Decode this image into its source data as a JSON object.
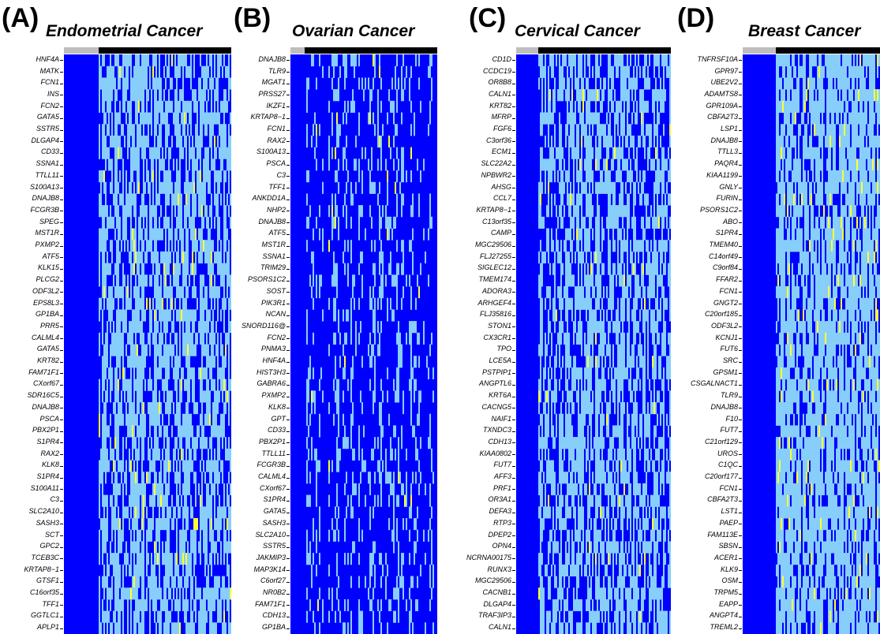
{
  "chart_data": [
    {
      "type": "heatmap",
      "letter": "(A)",
      "title": "Endometrial Cancer",
      "colors": {
        "dark": "#0000ff",
        "light": "#87cefa",
        "high": "#ffff33",
        "bar_normal": "#bebebe",
        "bar_tumor": "#000000"
      },
      "genes": [
        "HNF4A",
        "MATK",
        "FCN1",
        "INS",
        "FCN2",
        "GATA5",
        "SSTR5",
        "DLGAP4",
        "CD33",
        "SSNA1",
        "TTLL11",
        "S100A13",
        "DNAJB8",
        "FCGR3B",
        "SPEG",
        "MST1R",
        "PXMP2",
        "ATF5",
        "KLK15",
        "PLCG2",
        "ODF3L2",
        "EPS8L3",
        "GP1BA",
        "PRR5",
        "CALML4",
        "GATA5",
        "KRT82",
        "FAM71F1",
        "CXorf67",
        "SDR16C5",
        "DNAJB8",
        "PSCA",
        "PBX2P1",
        "S1PR4",
        "RAX2",
        "KLK8",
        "S1PR4",
        "S100A11",
        "C3",
        "SLC2A10",
        "SASH3",
        "SCT",
        "GPC2",
        "TCEB3C",
        "KRTAP8−1",
        "GTSF1",
        "C16orf35",
        "TFF1",
        "GGTLC1",
        "APLP1"
      ]
    },
    {
      "type": "heatmap",
      "letter": "(B)",
      "title": "Ovarian Cancer",
      "colors": {
        "dark": "#0000ff",
        "light": "#87cefa",
        "high": "#ffff33",
        "bar_normal": "#bebebe",
        "bar_tumor": "#000000"
      },
      "genes": [
        "DNAJB8",
        "TLR9",
        "MGAT1",
        "PRSS27",
        "IKZF1",
        "KRTAP8−1",
        "FCN1",
        "RAX2",
        "S100A13",
        "PSCA",
        "C3",
        "TFF1",
        "ANKDD1A",
        "NHP2",
        "DNAJB8",
        "ATF5",
        "MST1R",
        "SSNA1",
        "TRIM29",
        "PSORS1C2",
        "SOST",
        "PIK3R1",
        "NCAN",
        "SNORD116@",
        "FCN2",
        "PNMA3",
        "HNF4A",
        "HIST3H3",
        "GABRA6",
        "PXMP2",
        "KLK8",
        "GPT",
        "CD33",
        "PBX2P1",
        "TTLL11",
        "FCGR3B",
        "CALML4",
        "CXorf67",
        "S1PR4",
        "GATA5",
        "SASH3",
        "SLC2A10",
        "SSTR5",
        "JAKMIP3",
        "MAP3K14",
        "C6orf27",
        "NR0B2",
        "FAM71F1",
        "CDH13",
        "GP1BA"
      ]
    },
    {
      "type": "heatmap",
      "letter": "(C)",
      "title": "Cervical Cancer",
      "colors": {
        "dark": "#0000ff",
        "light": "#87cefa",
        "high": "#ffff33",
        "bar_normal": "#bebebe",
        "bar_tumor": "#000000"
      },
      "genes": [
        "CD1D",
        "CCDC19",
        "OR8B8",
        "CALN1",
        "KRT82",
        "MFRP",
        "FGF6",
        "C3orf36",
        "ECM1",
        "SLC22A2",
        "NPBWR2",
        "AHSG",
        "CCL7",
        "KRTAP8−1",
        "C13orf35",
        "CAMP",
        "MGC29506",
        "FLJ27255",
        "SIGLEC12",
        "TMEM174",
        "ADORA3",
        "ARHGEF4",
        "FLJ35816",
        "STON1",
        "CX3CR1",
        "TPO",
        "LCE5A",
        "PSTPIP1",
        "ANGPTL6",
        "KRT6A",
        "CACNG5",
        "NAIF1",
        "TXNDC3",
        "CDH13",
        "KIAA0802",
        "FUT7",
        "AFF3",
        "PRF1",
        "OR3A1",
        "DEFA3",
        "RTP3",
        "DPEP2",
        "OPN4",
        "NCRNA00175",
        "RUNX3",
        "MGC29506",
        "CACNB1",
        "DLGAP4",
        "TRAF3IP3",
        "CALN1"
      ]
    },
    {
      "type": "heatmap",
      "letter": "(D)",
      "title": "Breast Cancer",
      "colors": {
        "dark": "#0000ff",
        "light": "#87cefa",
        "high": "#ffff33",
        "bar_normal": "#bebebe",
        "bar_tumor": "#000000"
      },
      "genes": [
        "TNFRSF10A",
        "GPR97",
        "UBE2V2",
        "ADAMTS8",
        "GPR109A",
        "CBFA2T3",
        "LSP1",
        "DNAJB8",
        "TTLL3",
        "PAQR4",
        "KIAA1199",
        "GNLY",
        "FURIN",
        "PSORS1C2",
        "ABO",
        "S1PR4",
        "TMEM40",
        "C14orf49",
        "C9orf84",
        "FFAR2",
        "FCN1",
        "GNGT2",
        "C20orf185",
        "ODF3L2",
        "KCNJ1",
        "FUT6",
        "SRC",
        "GPSM1",
        "CSGALNACT1",
        "TLR9",
        "DNAJB8",
        "F10",
        "FUT7",
        "C21orf129",
        "UROS",
        "C1QC",
        "C20orf177",
        "FCN1",
        "CBFA2T3",
        "LST1",
        "PAEP",
        "FAM113E",
        "SBSN",
        "ACER1",
        "KLK9",
        "OSM",
        "TRPM5",
        "EAPP",
        "ANGPT4",
        "TREML2"
      ]
    }
  ]
}
